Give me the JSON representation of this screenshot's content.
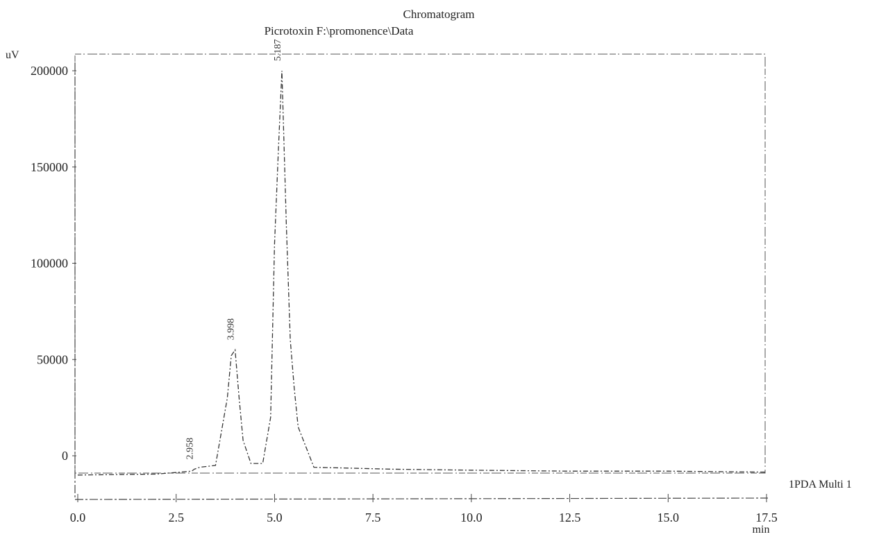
{
  "chart_data": {
    "type": "line",
    "title": "Chromatogram",
    "subtitle": "Picrotoxin F:\\promonence\\Data",
    "ylabel": "uV",
    "xlabel": "min",
    "ylim": [
      -25000,
      205000
    ],
    "xlim": [
      0.0,
      17.5
    ],
    "y_ticks": [
      0,
      50000,
      100000,
      150000,
      200000
    ],
    "y_tick_labels": [
      "0",
      "50000",
      "100000",
      "150000",
      "200000"
    ],
    "x_ticks": [
      0.0,
      2.5,
      5.0,
      7.5,
      10.0,
      12.5,
      15.0,
      17.5
    ],
    "x_tick_labels": [
      "0.0",
      "2.5",
      "5.0",
      "7.5",
      "10.0",
      "12.5",
      "15.0",
      "17.5"
    ],
    "grid": false,
    "legend": "right",
    "series": [
      {
        "name": "1PDA Multi 1",
        "x": [
          0.0,
          2.0,
          2.9,
          2.958,
          3.1,
          3.5,
          3.8,
          3.9,
          3.998,
          4.1,
          4.2,
          4.4,
          4.7,
          4.9,
          5.0,
          5.1,
          5.187,
          5.3,
          5.4,
          5.5,
          5.6,
          6.0,
          8.0,
          10.0,
          12.5,
          15.0,
          17.5
        ],
        "y": [
          -10000,
          -9500,
          -8000,
          -7000,
          -6000,
          -5000,
          30000,
          52000,
          55000,
          30000,
          8000,
          -4000,
          -4000,
          20000,
          110000,
          160000,
          200000,
          120000,
          60000,
          35000,
          15000,
          -6000,
          -7000,
          -7500,
          -8000,
          -8000,
          -8500
        ]
      }
    ],
    "peak_labels": [
      {
        "x": 2.958,
        "label": "2.958"
      },
      {
        "x": 3.998,
        "label": "3.998"
      },
      {
        "x": 5.187,
        "label": "5.187"
      }
    ]
  }
}
